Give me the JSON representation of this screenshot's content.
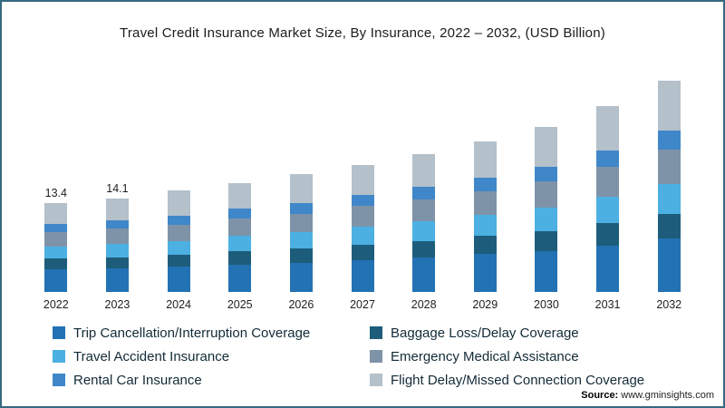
{
  "title": "Travel Credit Insurance Market Size, By Insurance, 2022 – 2032, (USD Billion)",
  "source": {
    "prefix": "Source:",
    "text": "www.gminsights.com"
  },
  "colors": {
    "frame_border": "#35697e",
    "background": "#ffffff"
  },
  "chart_data": {
    "type": "bar",
    "stacked": true,
    "grid": false,
    "legend_position": "bottom",
    "title": "Travel Credit Insurance Market Size, By Insurance, 2022 – 2032, (USD Billion)",
    "xlabel": "",
    "ylabel": "USD Billion",
    "ylim": [
      0,
      33
    ],
    "categories": [
      "2022",
      "2023",
      "2024",
      "2025",
      "2026",
      "2027",
      "2028",
      "2029",
      "2030",
      "2031",
      "2032"
    ],
    "bar_labels": [
      "13.4",
      "14.1",
      "",
      "",
      "",
      "",
      "",
      "",
      "",
      "",
      ""
    ],
    "totals": [
      13.4,
      14.1,
      15.3,
      16.4,
      17.7,
      19.1,
      20.7,
      22.6,
      24.8,
      28.0,
      31.8
    ],
    "series": [
      {
        "name": "Trip Cancellation/Interruption Coverage",
        "color": "#2272b4",
        "values": [
          3.4,
          3.5,
          3.8,
          4.1,
          4.4,
          4.8,
          5.2,
          5.7,
          6.2,
          7.0,
          8.0
        ]
      },
      {
        "name": "Baggage Loss/Delay Coverage",
        "color": "#1d5d7b",
        "values": [
          1.6,
          1.7,
          1.8,
          2.0,
          2.1,
          2.3,
          2.5,
          2.7,
          3.0,
          3.4,
          3.8
        ]
      },
      {
        "name": "Travel Accident Insurance",
        "color": "#4cb0e2",
        "values": [
          1.9,
          2.0,
          2.1,
          2.3,
          2.5,
          2.7,
          2.9,
          3.2,
          3.5,
          3.9,
          4.5
        ]
      },
      {
        "name": "Emergency Medical Assistance",
        "color": "#7e93a8",
        "values": [
          2.1,
          2.3,
          2.4,
          2.6,
          2.8,
          3.1,
          3.3,
          3.6,
          4.0,
          4.5,
          5.1
        ]
      },
      {
        "name": "Rental Car Insurance",
        "color": "#3f87c9",
        "values": [
          1.2,
          1.3,
          1.4,
          1.5,
          1.6,
          1.7,
          1.9,
          2.0,
          2.2,
          2.5,
          2.9
        ]
      },
      {
        "name": "Flight Delay/Missed Connection Coverage",
        "color": "#b4c0ca",
        "values": [
          3.2,
          3.3,
          3.8,
          3.9,
          4.3,
          4.5,
          4.9,
          5.4,
          5.9,
          6.7,
          7.5
        ]
      }
    ]
  }
}
